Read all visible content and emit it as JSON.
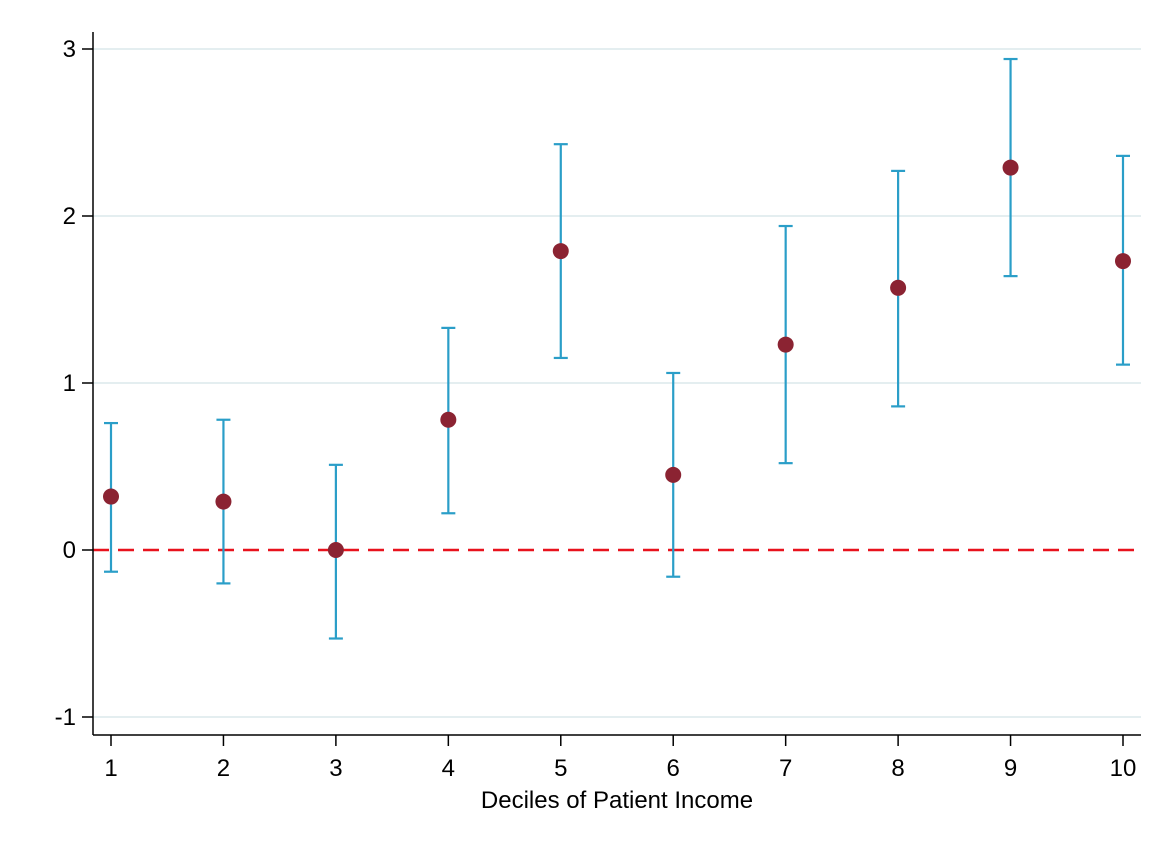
{
  "chart_data": {
    "type": "scatter",
    "subtype": "coefficient-plot-with-confidence-intervals",
    "title": "",
    "xlabel": "Deciles of Patient Income",
    "ylabel": "",
    "x_ticks": [
      "1",
      "2",
      "3",
      "4",
      "5",
      "6",
      "7",
      "8",
      "9",
      "10"
    ],
    "y_ticks": [
      "-1",
      "0",
      "1",
      "2",
      "3"
    ],
    "xlim": [
      0.85,
      10.15
    ],
    "ylim": [
      -1.11,
      3.11
    ],
    "grid": "horizontal",
    "reference_line": {
      "y": 0,
      "style": "dashed",
      "color": "#e8121d"
    },
    "colors": {
      "point": "#8b2332",
      "error_bar": "#2a9ec8",
      "grid": "#e4eef0",
      "axis": "#000000"
    },
    "points": [
      {
        "x": 1,
        "y": 0.32,
        "ci_low": -0.13,
        "ci_high": 0.76
      },
      {
        "x": 2,
        "y": 0.29,
        "ci_low": -0.2,
        "ci_high": 0.78
      },
      {
        "x": 3,
        "y": 0.0,
        "ci_low": -0.53,
        "ci_high": 0.51
      },
      {
        "x": 4,
        "y": 0.78,
        "ci_low": 0.22,
        "ci_high": 1.33
      },
      {
        "x": 5,
        "y": 1.79,
        "ci_low": 1.15,
        "ci_high": 2.43
      },
      {
        "x": 6,
        "y": 0.45,
        "ci_low": -0.16,
        "ci_high": 1.06
      },
      {
        "x": 7,
        "y": 1.23,
        "ci_low": 0.52,
        "ci_high": 1.94
      },
      {
        "x": 8,
        "y": 1.57,
        "ci_low": 0.86,
        "ci_high": 2.27
      },
      {
        "x": 9,
        "y": 2.29,
        "ci_low": 1.64,
        "ci_high": 2.94
      },
      {
        "x": 10,
        "y": 1.73,
        "ci_low": 1.11,
        "ci_high": 2.36
      }
    ]
  }
}
